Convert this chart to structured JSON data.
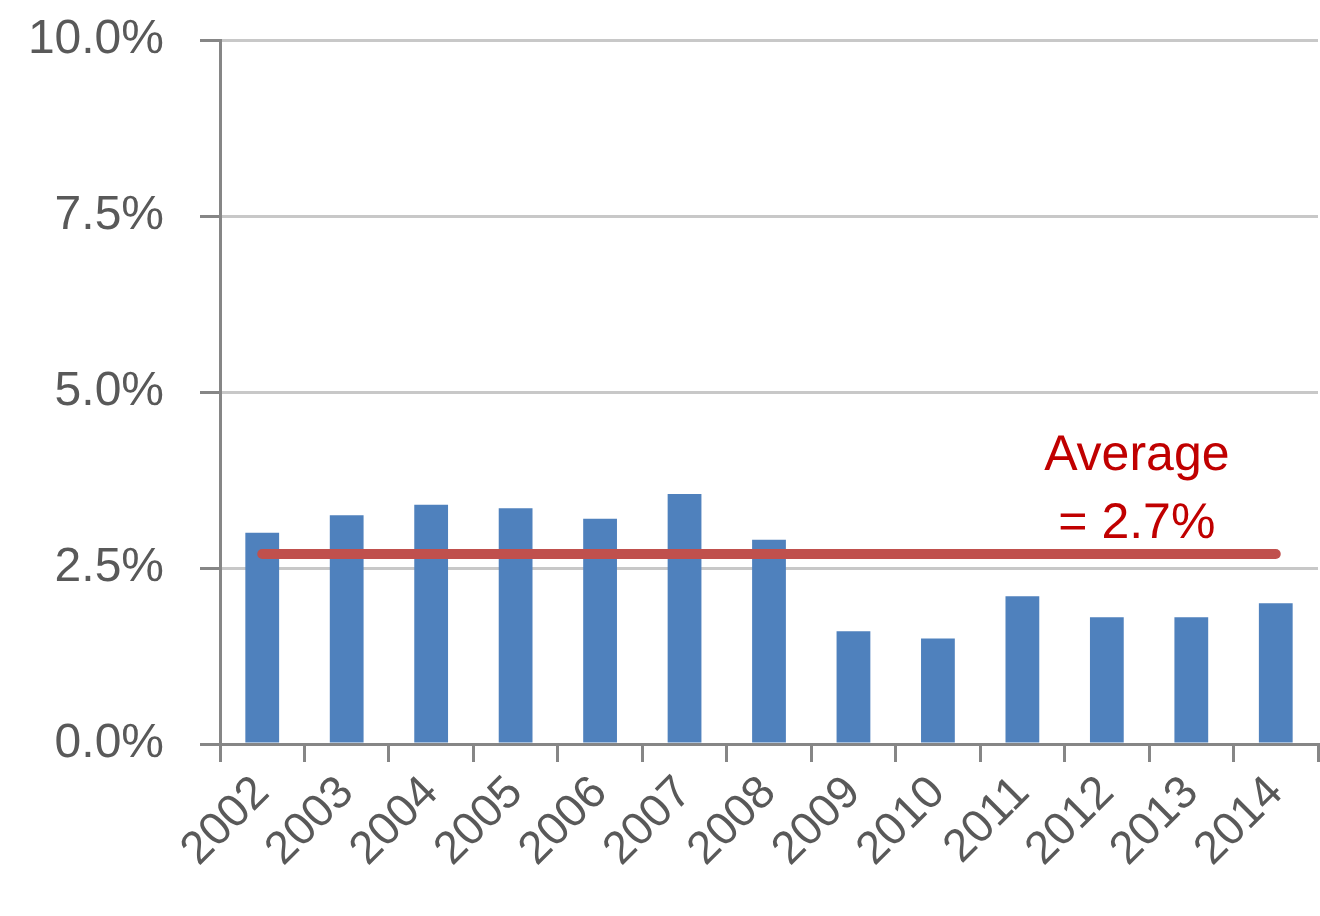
{
  "chart_data": {
    "type": "bar",
    "categories": [
      "2002",
      "2003",
      "2004",
      "2005",
      "2006",
      "2007",
      "2008",
      "2009",
      "2010",
      "2011",
      "2012",
      "2013",
      "2014"
    ],
    "values": [
      3.0,
      3.25,
      3.4,
      3.35,
      3.2,
      3.55,
      2.9,
      1.6,
      1.5,
      2.1,
      1.8,
      1.8,
      2.0
    ],
    "color": "#4f81bd",
    "ylim": [
      0,
      10
    ],
    "yticks": [
      {
        "value": 0,
        "label": "0.0%"
      },
      {
        "value": 2.5,
        "label": "2.5%"
      },
      {
        "value": 5,
        "label": "5.0%"
      },
      {
        "value": 7.5,
        "label": "7.5%"
      },
      {
        "value": 10,
        "label": "10.0%"
      }
    ],
    "grid": "y",
    "ref_lines": [
      {
        "axis": "y",
        "value": 2.7,
        "label": "Average\n= 2.7%",
        "color": "#c0504d"
      }
    ]
  }
}
